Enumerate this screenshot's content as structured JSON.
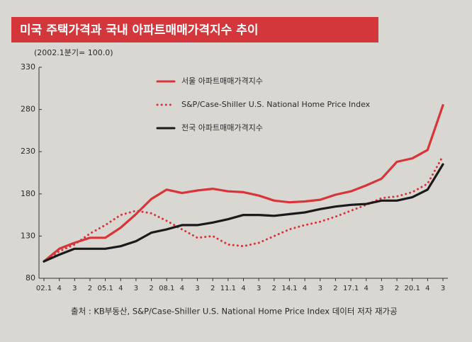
{
  "chart_data": {
    "type": "line",
    "title": "미국 주택가격과 국내 아파트매매가격지수 추이",
    "y_axis_label": "(2002.1분기= 100.0)",
    "source": "출처 : KB부동산, S&P/Case-Shiller U.S. National Home Price Index 데이터 저자 재가공",
    "categories": [
      "02.1",
      "4",
      "3",
      "2",
      "05.1",
      "4",
      "3",
      "2",
      "08.1",
      "4",
      "3",
      "2",
      "11.1",
      "4",
      "3",
      "2",
      "14.1",
      "4",
      "3",
      "2",
      "17.1",
      "4",
      "3",
      "2",
      "20.1",
      "4",
      "3"
    ],
    "ylim": [
      80,
      330
    ],
    "yticks": [
      80,
      130,
      180,
      230,
      280,
      330
    ],
    "grid": false,
    "series": [
      {
        "name": "서울 아파트매매가격지수",
        "color": "#d8343a",
        "style": "solid",
        "values": [
          100,
          115,
          122,
          128,
          128,
          140,
          156,
          174,
          185,
          181,
          184,
          186,
          183,
          182,
          178,
          172,
          170,
          171,
          173,
          179,
          183,
          190,
          198,
          218,
          222,
          232,
          285
        ]
      },
      {
        "name": "S&P/Case-Shiller U.S. National Home Price Index",
        "color": "#d8343a",
        "style": "dotted",
        "values": [
          100,
          112,
          120,
          133,
          143,
          155,
          160,
          157,
          148,
          138,
          128,
          130,
          120,
          118,
          122,
          130,
          138,
          143,
          147,
          153,
          160,
          167,
          175,
          177,
          182,
          192,
          225
        ]
      },
      {
        "name": "전국 아파트매매가격지수",
        "color": "#1a1a1a",
        "style": "solid",
        "values": [
          100,
          108,
          115,
          115,
          115,
          118,
          124,
          134,
          138,
          143,
          143,
          146,
          150,
          155,
          155,
          154,
          156,
          158,
          162,
          165,
          167,
          168,
          172,
          172,
          176,
          185,
          215
        ]
      }
    ]
  }
}
